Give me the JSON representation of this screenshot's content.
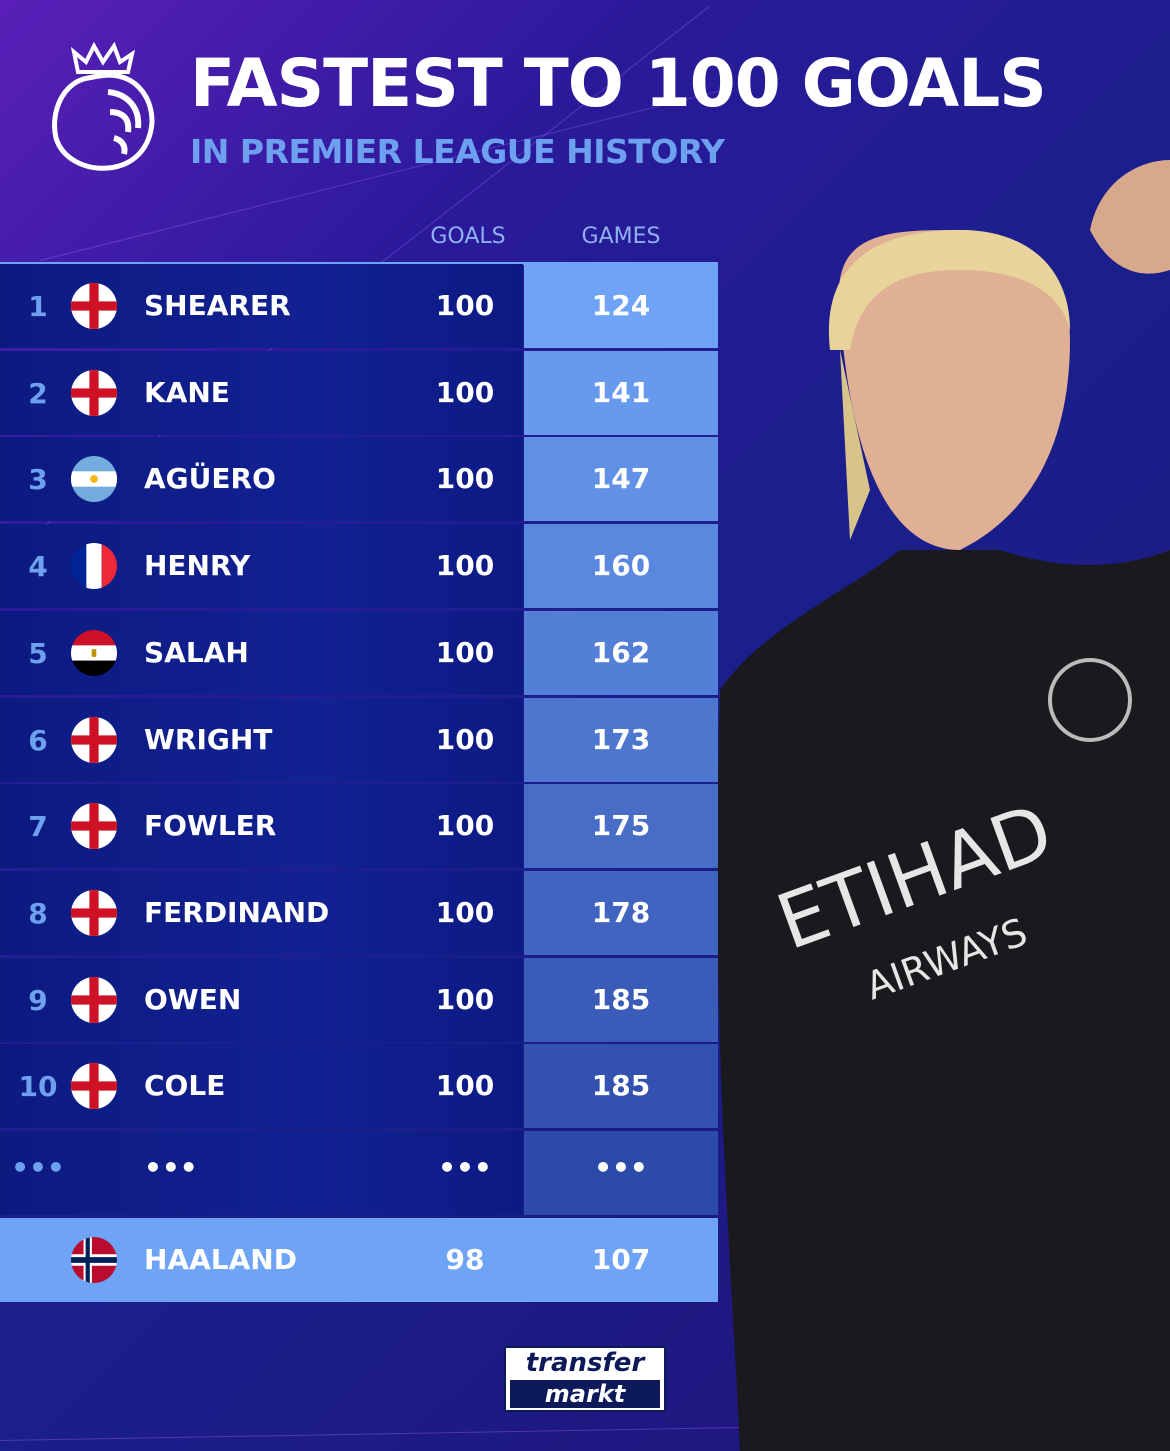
{
  "header": {
    "title": "FASTEST TO 100 GOALS",
    "subtitle": "IN PREMIER LEAGUE HISTORY"
  },
  "columns": {
    "goals": "GOALS",
    "games": "GAMES"
  },
  "rows": [
    {
      "rank": "1",
      "flag": "england",
      "name": "SHEARER",
      "goals": "100",
      "games": "124"
    },
    {
      "rank": "2",
      "flag": "england",
      "name": "KANE",
      "goals": "100",
      "games": "141"
    },
    {
      "rank": "3",
      "flag": "argentina",
      "name": "AGÜERO",
      "goals": "100",
      "games": "147"
    },
    {
      "rank": "4",
      "flag": "france",
      "name": "HENRY",
      "goals": "100",
      "games": "160"
    },
    {
      "rank": "5",
      "flag": "egypt",
      "name": "SALAH",
      "goals": "100",
      "games": "162"
    },
    {
      "rank": "6",
      "flag": "england",
      "name": "WRIGHT",
      "goals": "100",
      "games": "173"
    },
    {
      "rank": "7",
      "flag": "england",
      "name": "FOWLER",
      "goals": "100",
      "games": "175"
    },
    {
      "rank": "8",
      "flag": "england",
      "name": "FERDINAND",
      "goals": "100",
      "games": "178"
    },
    {
      "rank": "9",
      "flag": "england",
      "name": "OWEN",
      "goals": "100",
      "games": "185"
    },
    {
      "rank": "10",
      "flag": "england",
      "name": "COLE",
      "goals": "100",
      "games": "185"
    }
  ],
  "ellipsis_row": {
    "rank": "•••",
    "name": "•••",
    "goals": "•••",
    "games": "•••"
  },
  "highlight": {
    "flag": "norway",
    "name": "HAALAND",
    "goals": "98",
    "games": "107"
  },
  "brand": {
    "line1": "transfer",
    "line2": "markt",
    "logo": "premier-league-lion-icon"
  },
  "jersey": {
    "sponsor1": "ETIHAD",
    "sponsor2": "AIRWAYS"
  },
  "colors": {
    "accent": "#6ea3f5",
    "subtitle": "#6ea0f0",
    "row_bg": "#0f1d8a",
    "games_top": "#6ea3f5",
    "games_bottom": "#3352b0"
  }
}
